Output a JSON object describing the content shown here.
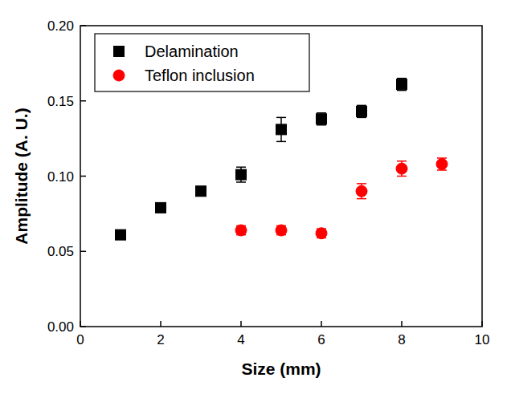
{
  "chart_data": {
    "type": "scatter",
    "x_label": "Size (mm)",
    "y_label": "Amplitude (A. U.)",
    "xlim": [
      0,
      10
    ],
    "ylim": [
      0,
      0.2
    ],
    "xticks": [
      0,
      2,
      4,
      6,
      8,
      10
    ],
    "yticks": [
      {
        "value": 0,
        "label": "0.00"
      },
      {
        "value": 0.05,
        "label": "0.05"
      },
      {
        "value": 0.1,
        "label": "0.10"
      },
      {
        "value": 0.15,
        "label": "0.15"
      },
      {
        "value": 0.2,
        "label": "0.20"
      }
    ],
    "grid": false,
    "legend": "top-left",
    "series": [
      {
        "name": "Delamination",
        "color": "#000000",
        "marker": "square",
        "x": [
          1,
          2,
          3,
          4,
          5,
          6,
          7,
          8
        ],
        "values": [
          0.061,
          0.079,
          0.09,
          0.101,
          0.131,
          0.138,
          0.143,
          0.161
        ],
        "errors": [
          0.003,
          0.003,
          0.003,
          0.005,
          0.008,
          0.004,
          0.004,
          0.004
        ]
      },
      {
        "name": "Teflon inclusion",
        "color": "#ff0000",
        "marker": "circle",
        "x": [
          4,
          5,
          6,
          7,
          8,
          9
        ],
        "values": [
          0.064,
          0.064,
          0.062,
          0.09,
          0.105,
          0.108
        ],
        "errors": [
          0.003,
          0.003,
          0.003,
          0.005,
          0.005,
          0.004
        ]
      }
    ]
  }
}
